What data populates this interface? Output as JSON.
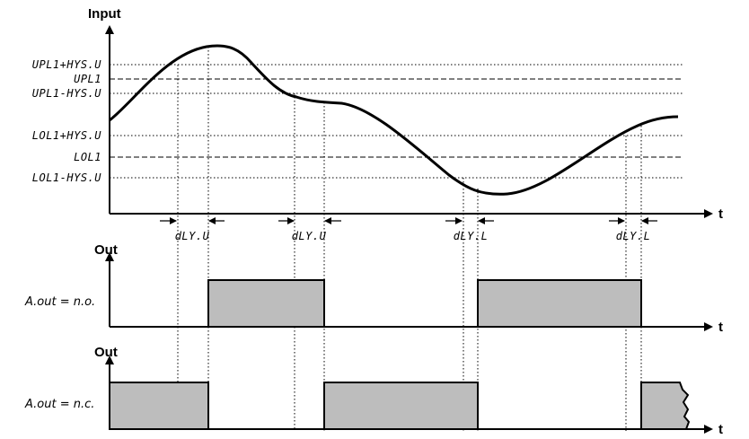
{
  "input_chart": {
    "y_axis_label": "Input",
    "t_axis_label": "t",
    "levels": {
      "upl_plus": "UPL1+HYS.U",
      "upl": "UPL1",
      "upl_minus": "UPL1-HYS.U",
      "lol_plus": "LOL1+HYS.U",
      "lol": "LOL1",
      "lol_minus": "LOL1-HYS.U"
    },
    "delays": {
      "d1": "dLY.U",
      "d2": "dLY.U",
      "d3": "dLY.L",
      "d4": "dLY.L"
    }
  },
  "output_no": {
    "y_axis_label": "Out",
    "t_axis_label": "t",
    "mode_label": "A.out = n.o."
  },
  "output_nc": {
    "y_axis_label": "Out",
    "t_axis_label": "t",
    "mode_label": "A.out = n.c."
  },
  "colors": {
    "pulse_fill": "#bdbdbd",
    "line": "#000000"
  }
}
